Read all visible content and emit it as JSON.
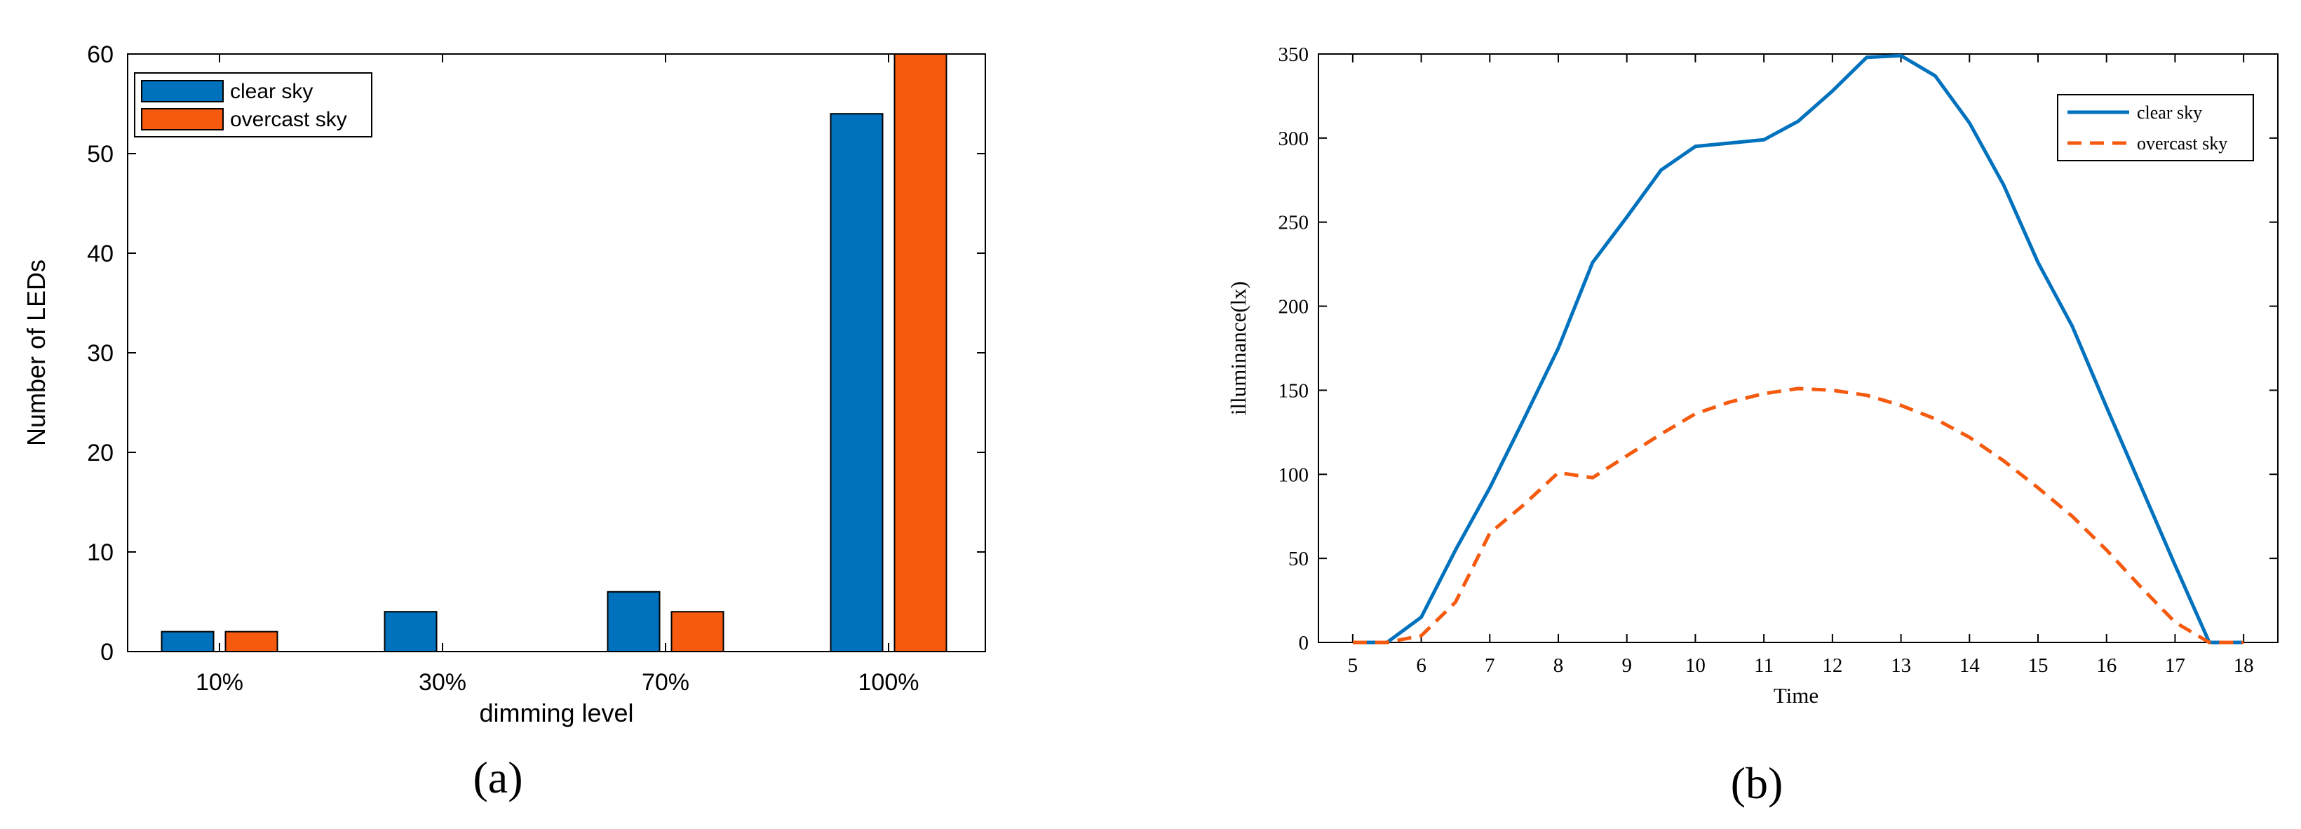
{
  "colors": {
    "clear": "#0072BD",
    "overcast": "#F55A0E",
    "axis": "#000000"
  },
  "panels": {
    "a_label": "(a)",
    "b_label": "(b)"
  },
  "chart_data": [
    {
      "type": "bar",
      "title": "",
      "xlabel": "dimming level",
      "ylabel": "Number of LEDs",
      "categories": [
        "10%",
        "30%",
        "70%",
        "100%"
      ],
      "series": [
        {
          "name": "clear sky",
          "values": [
            2,
            4,
            6,
            54
          ]
        },
        {
          "name": "overcast sky",
          "values": [
            2,
            0,
            4,
            60
          ]
        }
      ],
      "ylim": [
        0,
        60
      ],
      "yticks": [
        0,
        10,
        20,
        30,
        40,
        50,
        60
      ],
      "legend": "top-left"
    },
    {
      "type": "line",
      "title": "",
      "xlabel": "Time",
      "ylabel": "illuminance(lx)",
      "xlim": [
        4.5,
        18.5
      ],
      "ylim": [
        0,
        350
      ],
      "xticks": [
        5,
        6,
        7,
        8,
        9,
        10,
        11,
        12,
        13,
        14,
        15,
        16,
        17,
        18
      ],
      "yticks": [
        0,
        50,
        100,
        150,
        200,
        250,
        300,
        350
      ],
      "series": [
        {
          "name": "clear sky",
          "style": "solid",
          "x": [
            5,
            5.5,
            6,
            6.5,
            7,
            7.5,
            8,
            8.5,
            9,
            9.5,
            10,
            10.5,
            11,
            11.5,
            12,
            12.5,
            13,
            13.5,
            14,
            14.5,
            15,
            15.5,
            16,
            16.5,
            17,
            17.5,
            18
          ],
          "y": [
            0,
            0,
            15,
            55,
            92,
            133,
            175,
            226,
            253,
            281,
            295,
            297,
            299,
            310,
            328,
            348,
            349,
            337,
            309,
            272,
            226,
            188,
            140,
            93,
            46,
            0,
            0
          ]
        },
        {
          "name": "overcast sky",
          "style": "dashed",
          "x": [
            5,
            5.5,
            6,
            6.5,
            7,
            7.5,
            8,
            8.5,
            9,
            9.5,
            10,
            10.5,
            11,
            11.5,
            12,
            12.5,
            13,
            13.5,
            14,
            14.5,
            15,
            15.5,
            16,
            16.5,
            17,
            17.5,
            18
          ],
          "y": [
            0,
            0,
            4,
            24,
            65,
            82,
            101,
            98,
            111,
            124,
            136,
            143,
            148,
            151,
            150,
            147,
            141,
            133,
            122,
            108,
            92,
            75,
            55,
            33,
            12,
            0,
            0
          ]
        }
      ],
      "legend": "top-right"
    }
  ]
}
